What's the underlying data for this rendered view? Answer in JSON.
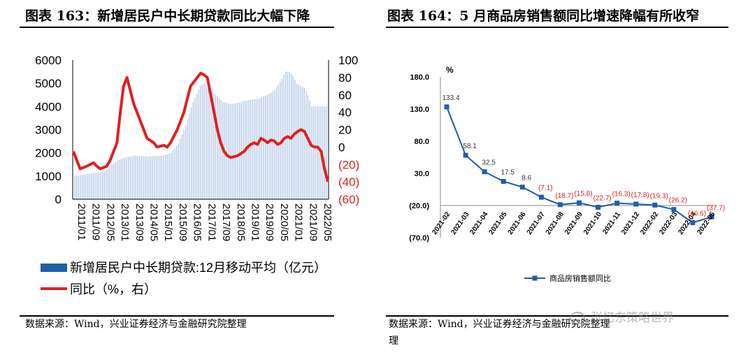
{
  "left": {
    "title": "图表 163：新增居民户中长期贷款同比大幅下降",
    "source": "数据来源：Wind，兴业证券经济与金融研究院整理"
  },
  "right": {
    "title": "图表 164：5 月商品房销售额同比增速降幅有所收窄",
    "source_line1": "数据来源：Wind，兴业证券经济与金融研究院整理",
    "source_line2": "理"
  },
  "watermark": "张忆东策略世界",
  "colors": {
    "bar": "#1f5fa6",
    "line": "#e02020",
    "line2": "#1f5fa6",
    "neg": "#e02020"
  },
  "chart_data": [
    {
      "type": "bar",
      "title": "新增居民户中长期贷款同比大幅下降",
      "x_tick_labels": [
        "2011/01",
        "2011/09",
        "2012/05",
        "2013/01",
        "2013/09",
        "2014/05",
        "2015/01",
        "2015/09",
        "2016/05",
        "2017/01",
        "2017/09",
        "2018/05",
        "2019/01",
        "2019/09",
        "2020/05",
        "2021/01",
        "2021/09",
        "2022/05"
      ],
      "left_axis": {
        "ylim": [
          0,
          6000
        ],
        "ticks": [
          "0",
          "1000",
          "2000",
          "3000",
          "4000",
          "5000",
          "6000"
        ]
      },
      "right_axis": {
        "ylim": [
          -60,
          100
        ],
        "ticks": [
          "(60)",
          "(40)",
          "(20)",
          "0",
          "20",
          "40",
          "60",
          "80",
          "100"
        ]
      },
      "series": [
        {
          "name": "新增居民户中长期贷款:12月移动平均（亿元）",
          "type": "bar",
          "axis": "left",
          "anchors": [
            [
              0,
              1000
            ],
            [
              8,
              1100
            ],
            [
              16,
              1200
            ],
            [
              20,
              1500
            ],
            [
              24,
              1700
            ],
            [
              28,
              1800
            ],
            [
              32,
              1880
            ],
            [
              40,
              1850
            ],
            [
              48,
              1880
            ],
            [
              52,
              2000
            ],
            [
              56,
              2400
            ],
            [
              60,
              3200
            ],
            [
              64,
              4200
            ],
            [
              68,
              4900
            ],
            [
              70,
              5000
            ],
            [
              72,
              4800
            ],
            [
              76,
              4500
            ],
            [
              80,
              4200
            ],
            [
              84,
              4100
            ],
            [
              88,
              4150
            ],
            [
              92,
              4250
            ],
            [
              96,
              4300
            ],
            [
              100,
              4350
            ],
            [
              104,
              4500
            ],
            [
              108,
              4700
            ],
            [
              112,
              5200
            ],
            [
              114,
              5500
            ],
            [
              116,
              5500
            ],
            [
              118,
              5300
            ],
            [
              120,
              5000
            ],
            [
              124,
              4800
            ],
            [
              126,
              4500
            ],
            [
              128,
              4000
            ]
          ]
        },
        {
          "name": "同比（%，右）",
          "type": "line",
          "axis": "right",
          "anchors": [
            [
              0,
              -5
            ],
            [
              2,
              -15
            ],
            [
              4,
              -25
            ],
            [
              8,
              -22
            ],
            [
              12,
              -18
            ],
            [
              14,
              -22
            ],
            [
              16,
              -25
            ],
            [
              20,
              -22
            ],
            [
              22,
              -15
            ],
            [
              26,
              5
            ],
            [
              28,
              40
            ],
            [
              30,
              70
            ],
            [
              32,
              80
            ],
            [
              34,
              65
            ],
            [
              36,
              50
            ],
            [
              40,
              30
            ],
            [
              44,
              10
            ],
            [
              48,
              5
            ],
            [
              50,
              0
            ],
            [
              54,
              2
            ],
            [
              56,
              0
            ],
            [
              58,
              5
            ],
            [
              62,
              20
            ],
            [
              66,
              40
            ],
            [
              68,
              55
            ],
            [
              70,
              70
            ],
            [
              74,
              80
            ],
            [
              76,
              85
            ],
            [
              78,
              83
            ],
            [
              80,
              80
            ],
            [
              82,
              60
            ],
            [
              84,
              40
            ],
            [
              86,
              20
            ],
            [
              88,
              5
            ],
            [
              90,
              -5
            ],
            [
              92,
              -10
            ],
            [
              94,
              -12
            ],
            [
              98,
              -10
            ],
            [
              102,
              -5
            ],
            [
              104,
              0
            ],
            [
              106,
              3
            ],
            [
              108,
              5
            ],
            [
              110,
              3
            ],
            [
              112,
              10
            ],
            [
              114,
              8
            ],
            [
              116,
              5
            ],
            [
              118,
              8
            ],
            [
              120,
              7
            ],
            [
              122,
              3
            ],
            [
              124,
              5
            ],
            [
              126,
              10
            ],
            [
              128,
              12
            ],
            [
              130,
              10
            ],
            [
              132,
              15
            ],
            [
              134,
              18
            ],
            [
              136,
              20
            ],
            [
              138,
              18
            ],
            [
              140,
              10
            ],
            [
              142,
              2
            ],
            [
              144,
              0
            ],
            [
              146,
              0
            ],
            [
              148,
              -5
            ],
            [
              150,
              -25
            ],
            [
              152,
              -40
            ]
          ]
        }
      ]
    },
    {
      "type": "line",
      "title": "5月商品房销售额同比增速降幅有所收窄",
      "ylabel": "%",
      "categories": [
        "2021-02",
        "2021-03",
        "2021-04",
        "2021-05",
        "2021-06",
        "2021-07",
        "2021-08",
        "2021-09",
        "2021-10",
        "2021-11",
        "2021-12",
        "2022-02",
        "2022-03",
        "2022-04",
        "2022-05"
      ],
      "ylim": [
        -70,
        180
      ],
      "y_ticks": [
        "(70.0)",
        "(20.0)",
        "30.0",
        "80.0",
        "130.0",
        "180.0"
      ],
      "series": [
        {
          "name": "商品房销售额同比",
          "values": [
            133.4,
            58.1,
            32.5,
            17.5,
            8.6,
            -7.1,
            -18.7,
            -15.8,
            -22.7,
            -16.3,
            -17.8,
            -19.3,
            -26.2,
            -46.6,
            -37.7
          ],
          "labels": [
            "133.4",
            "58.1",
            "32.5",
            "17.5",
            "8.6",
            "(7.1)",
            "(18.7)",
            "(15.8)",
            "(22.7)",
            "(16.3)",
            "(17.8)",
            "(19.3)",
            "(26.2)",
            "(46.6)",
            "(37.7)"
          ]
        }
      ]
    }
  ]
}
